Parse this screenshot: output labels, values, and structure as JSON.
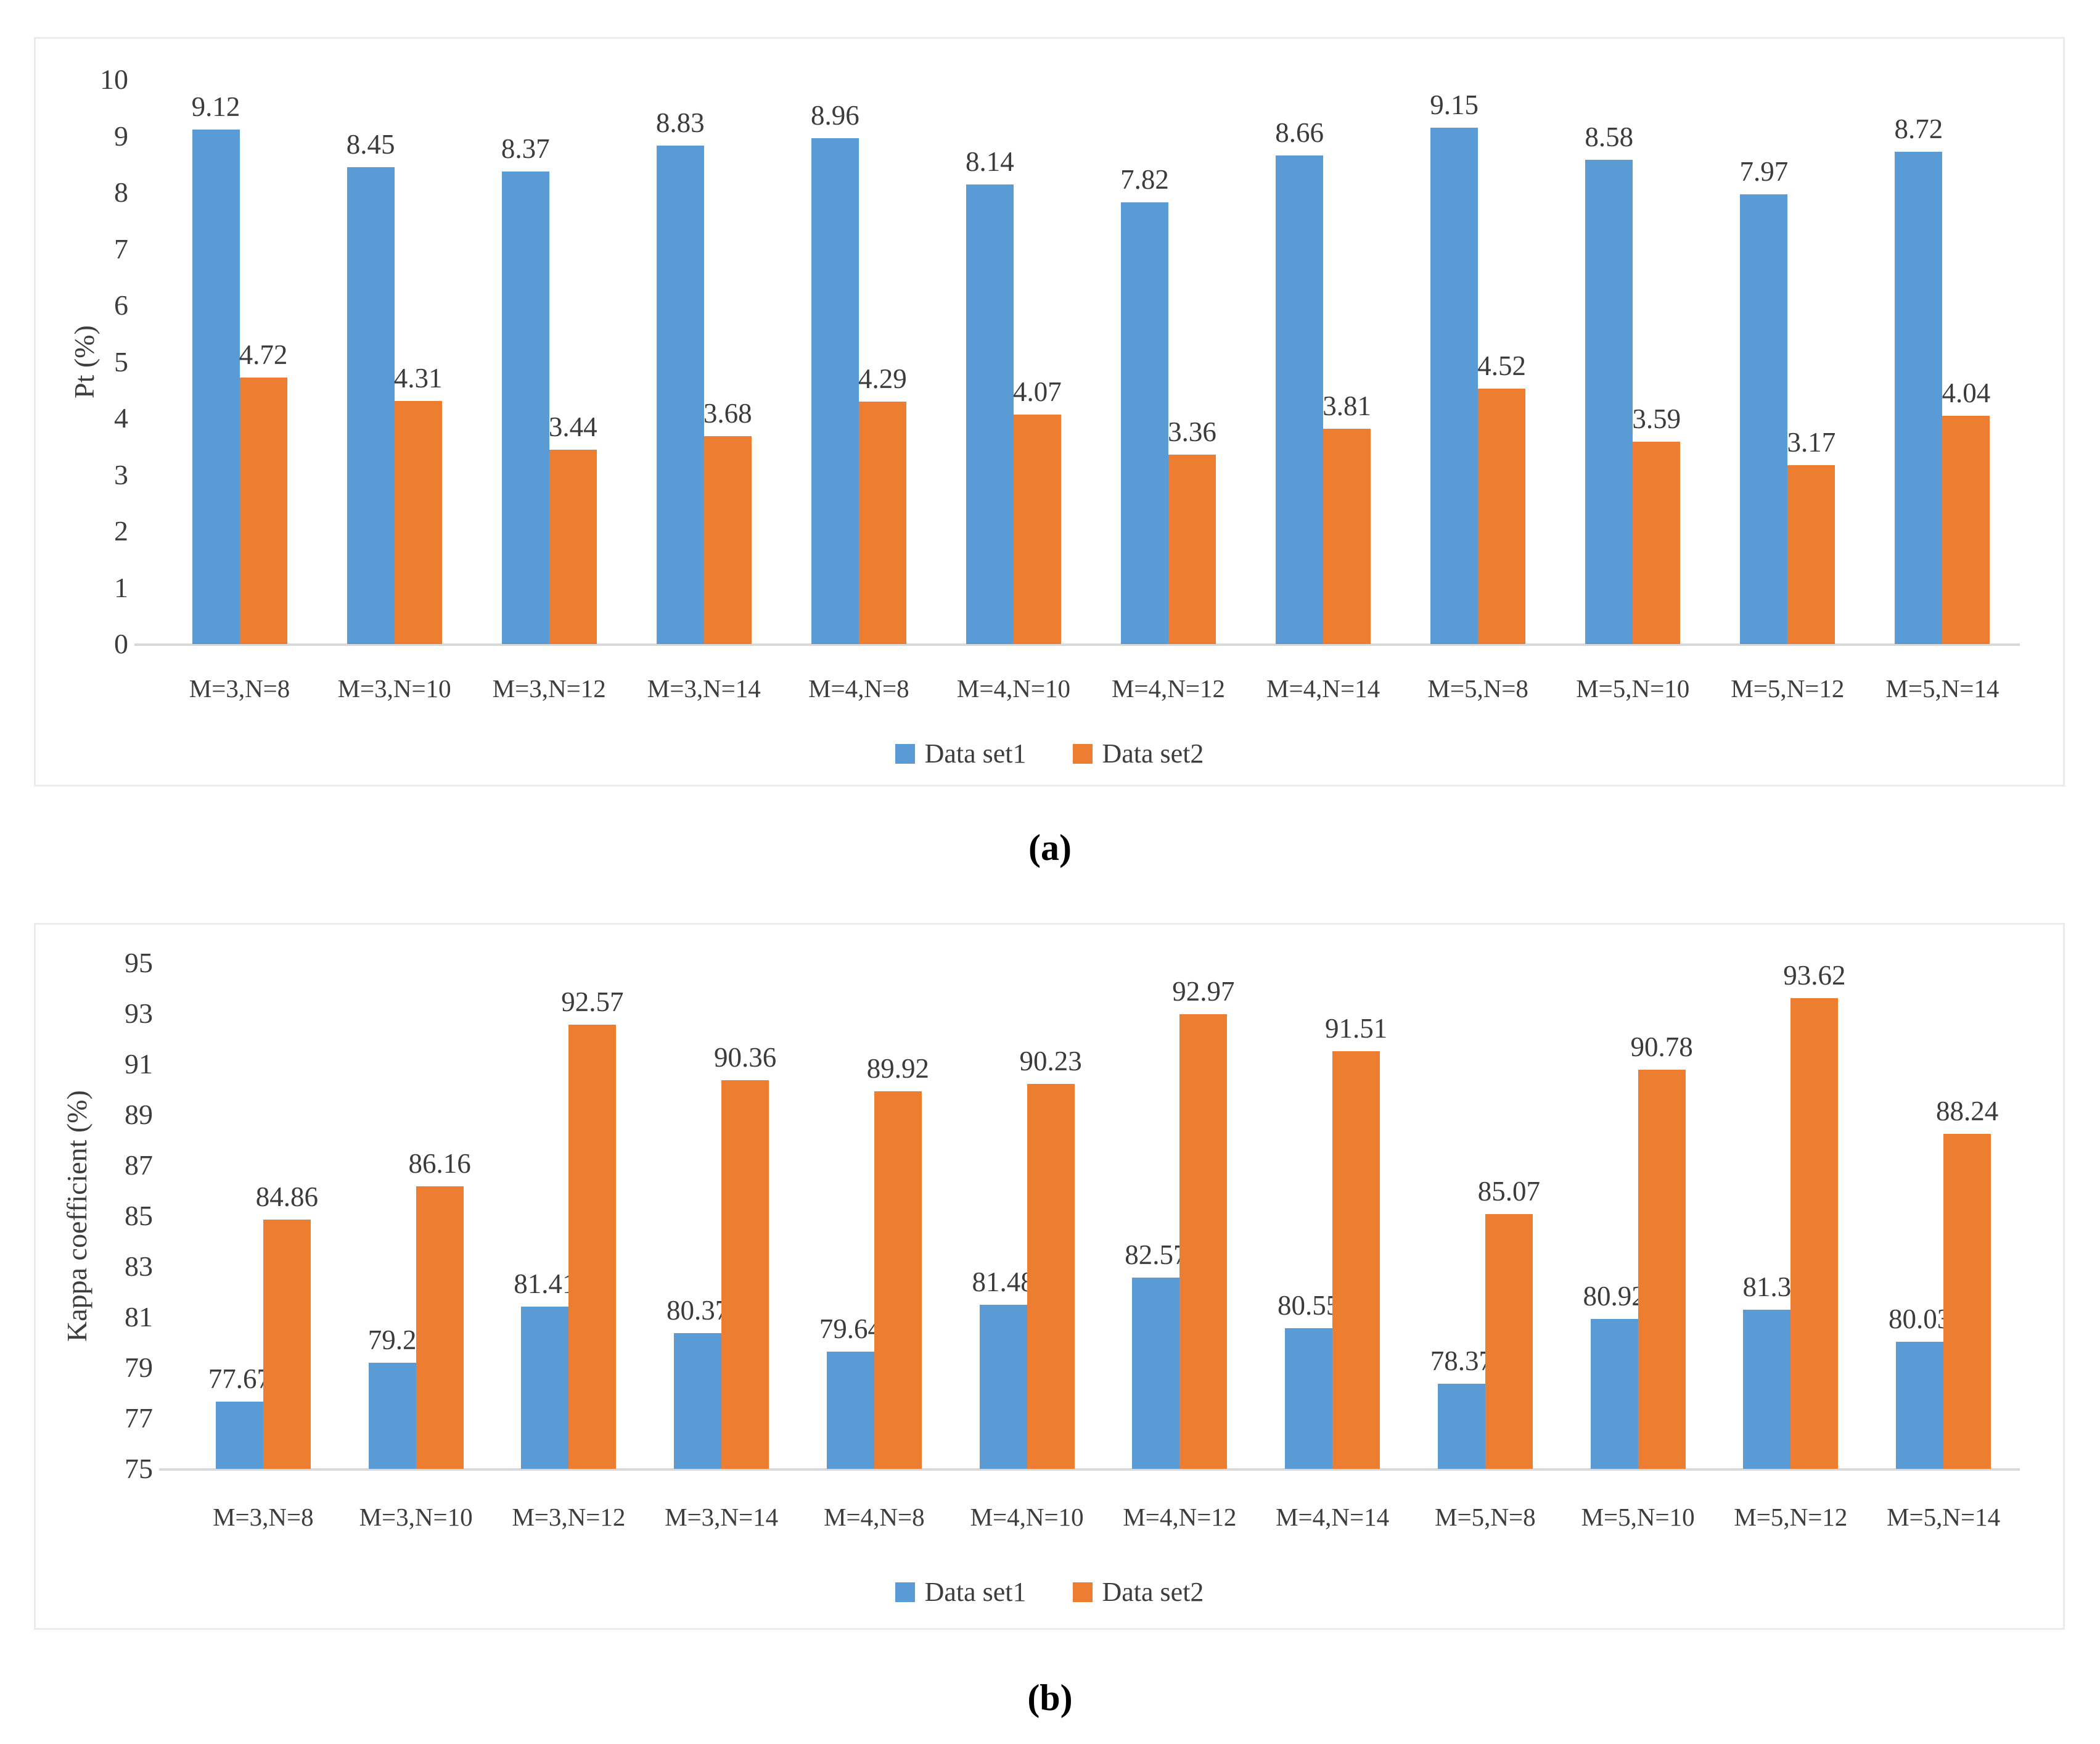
{
  "figure": {
    "caption_a": "(a)",
    "caption_b": "(b)"
  },
  "colors": {
    "series1": "#5B9BD5",
    "series2": "#ED7D31",
    "text": "#3D3D3D",
    "axis_line": "#D9D9D9",
    "panel_border": "#EBEBEB"
  },
  "chart_data": [
    {
      "type": "bar",
      "title": "",
      "xlabel": "",
      "ylabel": "Pt (%)",
      "ylim": [
        0,
        10
      ],
      "ytick_step": 1,
      "grid": false,
      "legend_position": "bottom",
      "categories": [
        "M=3,N=8",
        "M=3,N=10",
        "M=3,N=12",
        "M=3,N=14",
        "M=4,N=8",
        "M=4,N=10",
        "M=4,N=12",
        "M=4,N=14",
        "M=5,N=8",
        "M=5,N=10",
        "M=5,N=12",
        "M=5,N=14"
      ],
      "series": [
        {
          "name": "Data set1",
          "color": "#5B9BD5",
          "values": [
            9.12,
            8.45,
            8.37,
            8.83,
            8.96,
            8.14,
            7.82,
            8.66,
            9.15,
            8.58,
            7.97,
            8.72
          ]
        },
        {
          "name": "Data set2",
          "color": "#ED7D31",
          "values": [
            4.72,
            4.31,
            3.44,
            3.68,
            4.29,
            4.07,
            3.36,
            3.81,
            4.52,
            3.59,
            3.17,
            4.04
          ]
        }
      ]
    },
    {
      "type": "bar",
      "title": "",
      "xlabel": "",
      "ylabel": "Kappa coefficient  (%)",
      "ylim": [
        75,
        95
      ],
      "ytick_step": 2,
      "grid": false,
      "legend_position": "bottom",
      "categories": [
        "M=3,N=8",
        "M=3,N=10",
        "M=3,N=12",
        "M=3,N=14",
        "M=4,N=8",
        "M=4,N=10",
        "M=4,N=12",
        "M=4,N=14",
        "M=5,N=8",
        "M=5,N=10",
        "M=5,N=12",
        "M=5,N=14"
      ],
      "series": [
        {
          "name": "Data set1",
          "color": "#5B9BD5",
          "values": [
            77.67,
            79.2,
            81.41,
            80.37,
            79.64,
            81.48,
            82.57,
            80.55,
            78.37,
            80.92,
            81.3,
            80.03
          ]
        },
        {
          "name": "Data set2",
          "color": "#ED7D31",
          "values": [
            84.86,
            86.16,
            92.57,
            90.36,
            89.92,
            90.23,
            92.97,
            91.51,
            85.07,
            90.78,
            93.62,
            88.24
          ]
        }
      ]
    }
  ]
}
